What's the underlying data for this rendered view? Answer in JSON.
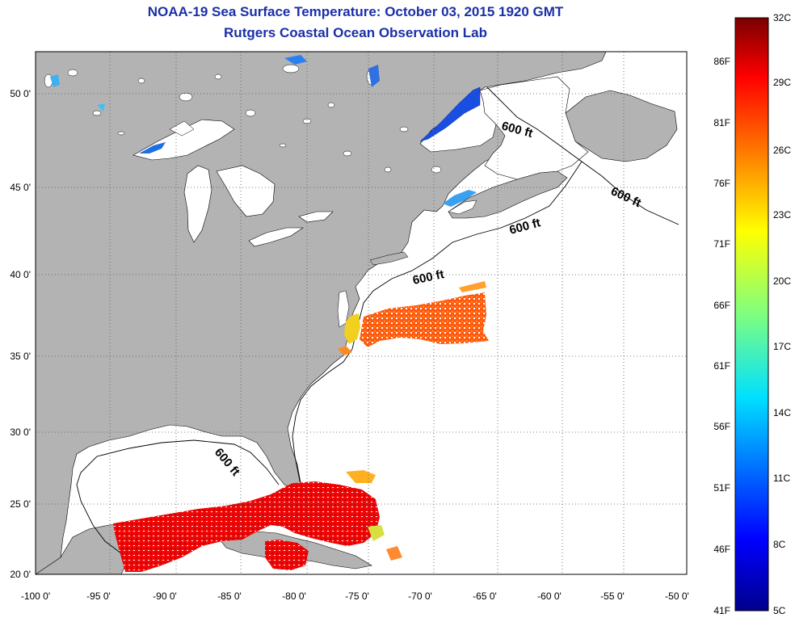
{
  "header": {
    "title": "NOAA-19 Sea Surface Temperature:  October 03, 2015 1920 GMT",
    "subtitle": "Rutgers Coastal Ocean Observation Lab"
  },
  "map": {
    "lon_ticks": [
      "-100 0'",
      "-95 0'",
      "-90 0'",
      "-85 0'",
      "-80 0'",
      "-75 0'",
      "-70 0'",
      "-65 0'",
      "-60 0'",
      "-55 0'",
      "-50 0'"
    ],
    "lat_ticks": [
      "50 0'",
      "45 0'",
      "40 0'",
      "35 0'",
      "30 0'",
      "25 0'",
      "20 0'"
    ],
    "contour_labels": [
      "600 ft",
      "600 ft",
      "600 ft",
      "600 ft",
      "600 ft"
    ],
    "grid": "dotted",
    "colors": {
      "land": "#b3b3b3",
      "water": "#ffffff",
      "grid": "#555555"
    }
  },
  "colorbar": {
    "f_labels": [
      "86F",
      "81F",
      "76F",
      "71F",
      "66F",
      "61F",
      "56F",
      "51F",
      "46F",
      "41F"
    ],
    "c_labels": [
      "32C",
      "29C",
      "26C",
      "23C",
      "20C",
      "17C",
      "14C",
      "11C",
      "8C",
      "5C"
    ],
    "colors": [
      "#800000",
      "#ff0000",
      "#ff8000",
      "#ffff00",
      "#80ff80",
      "#00ffff",
      "#0080ff",
      "#0000ff",
      "#000080"
    ]
  }
}
